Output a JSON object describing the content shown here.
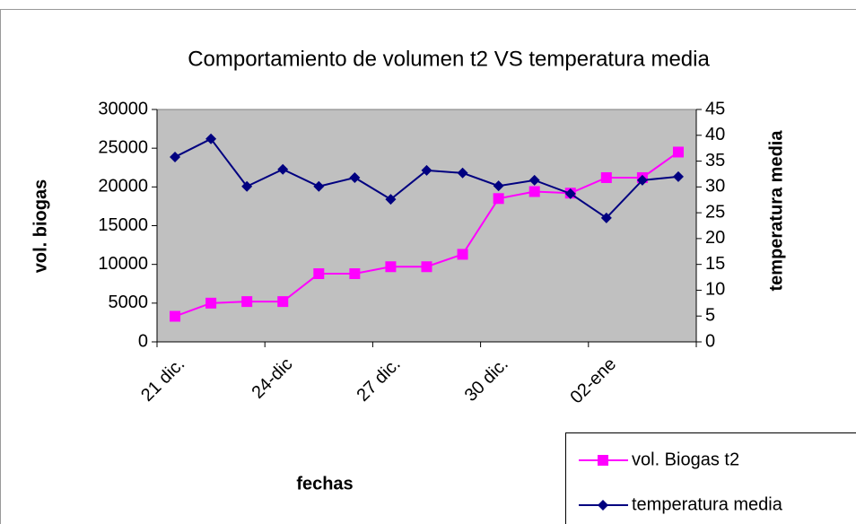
{
  "chart_data": {
    "type": "line",
    "title": "Comportamiento de volumen t2 VS temperatura media",
    "x_label": "fechas",
    "y_label": "vol. biogas",
    "y2_label": "temperatura media",
    "categories": [
      "21 dic.",
      null,
      null,
      "24-dic",
      null,
      null,
      "27 dic.",
      null,
      null,
      "30 dic.",
      null,
      null,
      "02-ene",
      null,
      null
    ],
    "series": [
      {
        "name": "vol. Biogas t2",
        "color": "#ff00ff",
        "marker": "square",
        "values": [
          3300,
          5000,
          5200,
          5200,
          8800,
          8800,
          9700,
          9700,
          11300,
          18500,
          19400,
          19200,
          21200,
          21200,
          24500
        ]
      },
      {
        "name": "temperatura media",
        "color": "#000080",
        "marker": "diamond",
        "axis": "y2",
        "values": [
          35.8,
          39.3,
          30.1,
          33.4,
          30.1,
          31.8,
          27.6,
          33.2,
          32.7,
          30.2,
          31.3,
          28.7,
          24.0,
          31.3,
          32.0
        ]
      }
    ],
    "ylim": [
      0,
      30000
    ],
    "yticks": [
      0,
      5000,
      10000,
      15000,
      20000,
      25000,
      30000
    ],
    "y2lim": [
      0,
      45
    ],
    "y2ticks": [
      0,
      5,
      10,
      15,
      20,
      25,
      30,
      35,
      40,
      45
    ],
    "plot_background": "#c0c0c0"
  }
}
